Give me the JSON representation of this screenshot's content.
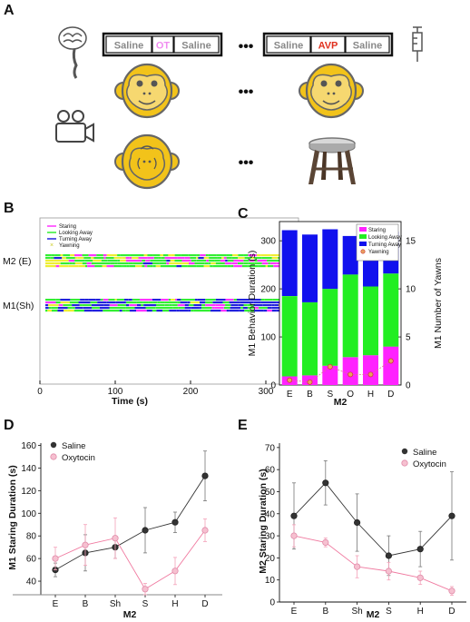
{
  "panels": {
    "a": "A",
    "b": "B",
    "c": "C",
    "d": "D",
    "e": "E"
  },
  "panelA": {
    "left_sequence": [
      "Saline",
      "OT",
      "Saline"
    ],
    "right_sequence": [
      "Saline",
      "AVP",
      "Saline"
    ],
    "ellipsis": "•••",
    "colors": {
      "saline": "#888888",
      "ot": "#f08cf0",
      "avp": "#e0301e",
      "monkey": "#f2c31a"
    }
  },
  "panelB": {
    "legend": [
      "Staring",
      "Looking Away",
      "Turning Away",
      "Yawning"
    ],
    "legend_colors": [
      "#ff33ff",
      "#33ee33",
      "#2222dd",
      "#eeee33"
    ],
    "row_labels": [
      "M2 (E)",
      "M1(Sh)"
    ],
    "xlabel": "Time (s)",
    "xticks": [
      "0",
      "100",
      "200",
      "300"
    ]
  },
  "chart_data": [
    {
      "type": "bar",
      "categories": [
        "E",
        "B",
        "S",
        "O",
        "H",
        "D"
      ],
      "series": [
        {
          "name": "Staring",
          "values": [
            18,
            20,
            40,
            58,
            62,
            80
          ],
          "color": "#ff22ff"
        },
        {
          "name": "Looking Away",
          "values": [
            167,
            152,
            160,
            172,
            143,
            152
          ],
          "color": "#22ee22"
        },
        {
          "name": "Turning Away",
          "values": [
            137,
            141,
            124,
            80,
            114,
            87
          ],
          "color": "#1111ee"
        }
      ],
      "yawning": {
        "name": "Yawning",
        "values": [
          0.5,
          0.3,
          1.9,
          1.1,
          1.1,
          2.5
        ]
      },
      "xlabel": "M2",
      "ylabel": "M1 Behavior Duration (s)",
      "ylabel_right": "M1 Number of Yawns",
      "ylim": [
        0,
        340
      ],
      "yticks": [
        "0",
        "100",
        "200",
        "300"
      ],
      "ylim_right": [
        0,
        15
      ],
      "yticks_right": [
        "0",
        "5",
        "10",
        "15"
      ]
    },
    {
      "type": "line",
      "categories": [
        "E",
        "B",
        "Sh",
        "S",
        "H",
        "D"
      ],
      "series": [
        {
          "name": "Saline",
          "values": [
            50,
            65,
            70,
            85,
            92,
            133
          ],
          "err": [
            6,
            16,
            10,
            20,
            9,
            22
          ],
          "color": "#333333"
        },
        {
          "name": "Oxytocin",
          "values": [
            60,
            72,
            78,
            33,
            49,
            85
          ],
          "err": [
            10,
            18,
            18,
            5,
            12,
            10
          ],
          "color": "#f4a0b8"
        }
      ],
      "xlabel": "M2",
      "ylabel": "M1 Staring Duration (s)",
      "ylim": [
        28,
        162
      ],
      "yticks": [
        "40",
        "60",
        "80",
        "100",
        "120",
        "140",
        "160"
      ]
    },
    {
      "type": "line",
      "categories": [
        "E",
        "B",
        "Sh",
        "S",
        "H",
        "D"
      ],
      "series": [
        {
          "name": "Saline",
          "values": [
            39,
            54,
            36,
            21,
            24,
            39
          ],
          "err": [
            15,
            10,
            13,
            9,
            8,
            20
          ],
          "color": "#333333"
        },
        {
          "name": "Oxytocin",
          "values": [
            30,
            27,
            16,
            14,
            11,
            5
          ],
          "err": [
            5,
            2,
            5,
            4,
            3,
            2
          ],
          "color": "#f4a0b8"
        }
      ],
      "xlabel": "M2",
      "ylabel": "M2 Staring Duration (s)",
      "ylim": [
        0,
        72
      ],
      "yticks": [
        "0",
        "10",
        "20",
        "30",
        "40",
        "50",
        "60",
        "70"
      ]
    }
  ]
}
